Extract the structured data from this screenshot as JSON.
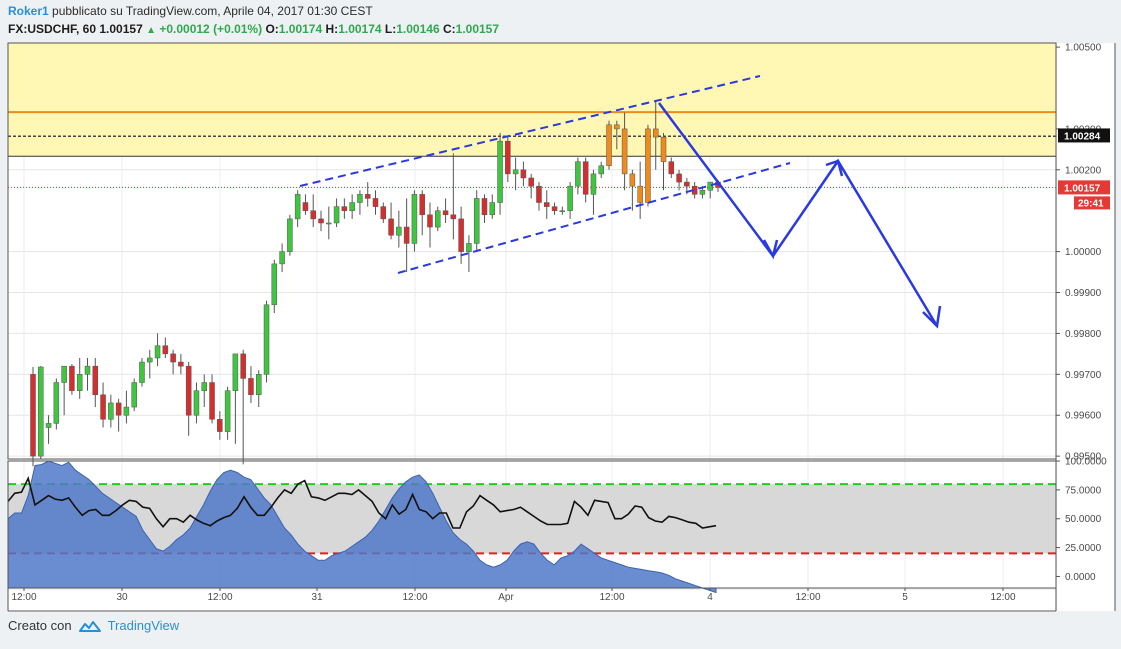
{
  "header": {
    "user": "Roker1",
    "published": "pubblicato su TradingView.com, Aprile 04, 2017 01:30 CEST",
    "symbol": "FX:USDCHF, 60",
    "last": "1.00157",
    "change": "+0.00012 (+0.01%)",
    "o_label": "O:",
    "o_value": "1.00174",
    "h_label": "H:",
    "h_value": "1.00174",
    "l_label": "L:",
    "l_value": "1.00146",
    "c_label": "C:",
    "c_value": "1.00157"
  },
  "footer": {
    "created_with": "Creato con",
    "brand": "TradingView"
  },
  "colors": {
    "up": "#3fc53f",
    "down": "#d32f2f",
    "orange": "#ef8a1c",
    "blue": "#2a39e0",
    "zone": "#fff7b3",
    "rsi_area": "#4f79c8",
    "rsi_band": "#d8d8d8"
  },
  "chart_data": [
    {
      "type": "candlestick",
      "symbol": "FX:USDCHF, 60",
      "y_axis_labels": [
        "1.00500",
        "1.00300",
        "1.00200",
        "1.00000",
        "0.99900",
        "0.99800",
        "0.99700",
        "0.99600",
        "0.99500"
      ],
      "ylim": [
        0.99493,
        1.0051
      ],
      "price_marker": "1.00284",
      "last_price_marker": "1.00157",
      "countdown": "29:41",
      "x_axis_labels": [
        "12:00",
        "30",
        "12:00",
        "31",
        "12:00",
        "Apr",
        "12:00",
        "4",
        "12:00",
        "5",
        "12:00"
      ],
      "candles_ohlc": [
        [
          0.997,
          0.99718,
          0.99475,
          0.995
        ],
        [
          0.995,
          0.9972,
          0.99492,
          0.99718
        ],
        [
          0.9957,
          0.996,
          0.9953,
          0.9958
        ],
        [
          0.9958,
          0.9969,
          0.99565,
          0.9968
        ],
        [
          0.9968,
          0.9972,
          0.996,
          0.9972
        ],
        [
          0.9972,
          0.99725,
          0.9965,
          0.9966
        ],
        [
          0.9966,
          0.9974,
          0.9964,
          0.997
        ],
        [
          0.997,
          0.9974,
          0.9966,
          0.9972
        ],
        [
          0.9972,
          0.9974,
          0.9962,
          0.9965
        ],
        [
          0.9965,
          0.9968,
          0.9957,
          0.9959
        ],
        [
          0.9959,
          0.9965,
          0.9957,
          0.9963
        ],
        [
          0.9963,
          0.9964,
          0.9956,
          0.996
        ],
        [
          0.996,
          0.9966,
          0.9958,
          0.9962
        ],
        [
          0.9962,
          0.9969,
          0.9961,
          0.9968
        ],
        [
          0.9968,
          0.9974,
          0.9967,
          0.9973
        ],
        [
          0.9973,
          0.9976,
          0.9969,
          0.9974
        ],
        [
          0.9974,
          0.998,
          0.9972,
          0.9977
        ],
        [
          0.9977,
          0.9979,
          0.9974,
          0.9975
        ],
        [
          0.9975,
          0.9976,
          0.997,
          0.9973
        ],
        [
          0.9973,
          0.9975,
          0.997,
          0.9972
        ],
        [
          0.9972,
          0.9973,
          0.9955,
          0.996
        ],
        [
          0.996,
          0.9968,
          0.9958,
          0.9966
        ],
        [
          0.9966,
          0.997,
          0.9962,
          0.9968
        ],
        [
          0.9968,
          0.997,
          0.9958,
          0.9959
        ],
        [
          0.9959,
          0.9961,
          0.9954,
          0.9956
        ],
        [
          0.9956,
          0.9967,
          0.9954,
          0.9966
        ],
        [
          0.9966,
          0.9975,
          0.9953,
          0.9975
        ],
        [
          0.9975,
          0.9976,
          0.9948,
          0.9969
        ],
        [
          0.9969,
          0.9972,
          0.9963,
          0.9965
        ],
        [
          0.9965,
          0.9971,
          0.9962,
          0.997
        ],
        [
          0.997,
          0.9988,
          0.9968,
          0.9987
        ],
        [
          0.9987,
          0.9998,
          0.9985,
          0.9997
        ],
        [
          0.9997,
          1.0002,
          0.9995,
          1.0
        ],
        [
          1.0,
          1.0009,
          0.9999,
          1.0008
        ],
        [
          1.0008,
          1.0015,
          1.0006,
          1.0014
        ],
        [
          1.0012,
          1.0014,
          1.0009,
          1.001
        ],
        [
          1.001,
          1.0014,
          1.0006,
          1.0008
        ],
        [
          1.0008,
          1.001,
          1.0005,
          1.0007
        ],
        [
          1.0007,
          1.0011,
          1.0003,
          1.0007
        ],
        [
          1.0007,
          1.0013,
          1.0006,
          1.0011
        ],
        [
          1.0011,
          1.0013,
          1.0008,
          1.001
        ],
        [
          1.001,
          1.0014,
          1.0008,
          1.0012
        ],
        [
          1.0012,
          1.0015,
          1.0009,
          1.0014
        ],
        [
          1.0014,
          1.0017,
          1.0011,
          1.0013
        ],
        [
          1.0013,
          1.0015,
          1.0009,
          1.0011
        ],
        [
          1.0011,
          1.0012,
          1.0007,
          1.0008
        ],
        [
          1.0008,
          1.0012,
          1.0003,
          1.0004
        ],
        [
          1.0004,
          1.001,
          1.0001,
          1.0006
        ],
        [
          1.0006,
          1.0013,
          0.9995,
          1.0002
        ],
        [
          1.0002,
          1.0015,
          1.0,
          1.0014
        ],
        [
          1.0014,
          1.0015,
          1.0004,
          1.0009
        ],
        [
          1.0009,
          1.0012,
          1.0001,
          1.0006
        ],
        [
          1.0006,
          1.0011,
          1.0005,
          1.001
        ],
        [
          1.001,
          1.0013,
          1.0007,
          1.0009
        ],
        [
          1.0009,
          1.0024,
          1.0003,
          1.0008
        ],
        [
          1.0008,
          1.0011,
          0.9997,
          1.0
        ],
        [
          1.0,
          1.0004,
          0.9995,
          1.0002
        ],
        [
          1.0002,
          1.0015,
          1.0,
          1.0013
        ],
        [
          1.0013,
          1.0014,
          1.0007,
          1.0009
        ],
        [
          1.0009,
          1.0014,
          1.0008,
          1.0012
        ],
        [
          1.0012,
          1.0029,
          1.0009,
          1.0027
        ],
        [
          1.0027,
          1.0028,
          1.0017,
          1.0019
        ],
        [
          1.0019,
          1.0023,
          1.0015,
          1.002
        ],
        [
          1.002,
          1.0022,
          1.0016,
          1.0018
        ],
        [
          1.0018,
          1.0019,
          1.0013,
          1.0016
        ],
        [
          1.0016,
          1.0017,
          1.001,
          1.0012
        ],
        [
          1.0012,
          1.0015,
          1.0008,
          1.0011
        ],
        [
          1.0011,
          1.0012,
          1.0009,
          1.001
        ],
        [
          1.001,
          1.0011,
          1.0009,
          1.001
        ],
        [
          1.001,
          1.0017,
          1.0008,
          1.0016
        ],
        [
          1.0016,
          1.0023,
          1.0014,
          1.0022
        ],
        [
          1.0022,
          1.0023,
          1.0012,
          1.0014
        ],
        [
          1.0014,
          1.002,
          1.0009,
          1.0019
        ],
        [
          1.0019,
          1.0022,
          1.0018,
          1.0021
        ],
        [
          1.0021,
          1.0032,
          1.002,
          1.0031
        ],
        [
          1.0031,
          1.0032,
          1.0025,
          1.003
        ],
        [
          1.003,
          1.0034,
          1.0015,
          1.0019
        ],
        [
          1.0019,
          1.002,
          1.001,
          1.0016
        ],
        [
          1.0016,
          1.0022,
          1.0008,
          1.0012
        ],
        [
          1.0012,
          1.0031,
          1.0011,
          1.003
        ],
        [
          1.003,
          1.0037,
          1.002,
          1.0028
        ],
        [
          1.0028,
          1.0029,
          1.0015,
          1.0022
        ],
        [
          1.0022,
          1.0023,
          1.0018,
          1.0019
        ],
        [
          1.0019,
          1.002,
          1.0015,
          1.0017
        ],
        [
          1.0017,
          1.0018,
          1.0014,
          1.0016
        ],
        [
          1.0016,
          1.0017,
          1.0013,
          1.0014
        ],
        [
          1.0014,
          1.0016,
          1.0013,
          1.0015
        ],
        [
          1.0015,
          1.0017,
          1.0013,
          1.0017
        ],
        [
          1.0017,
          1.00175,
          1.00146,
          1.00157
        ]
      ],
      "horizontal_levels": [
        1.00341,
        1.00282,
        1.00233,
        1.00157
      ],
      "zone": [
        1.00233,
        1.0051
      ]
    },
    {
      "type": "line",
      "name": "RSI",
      "y_axis_labels": [
        "100.0000",
        "75.0000",
        "50.0000",
        "25.0000",
        "0.0000"
      ],
      "ylim": [
        -10,
        100
      ],
      "upper_band": 80,
      "lower_band": 20,
      "line_values": [
        65,
        72,
        73,
        85,
        62,
        66,
        70,
        67,
        66,
        68,
        60,
        53,
        57,
        58,
        53,
        53,
        57,
        62,
        66,
        65,
        60,
        59,
        50,
        43,
        50,
        50,
        47,
        53,
        49,
        46,
        44,
        48,
        51,
        53,
        59,
        69,
        60,
        53,
        53,
        60,
        68,
        75,
        72,
        80,
        83,
        69,
        68,
        66,
        69,
        72,
        72,
        71,
        75,
        70,
        65,
        55,
        50,
        62,
        54,
        58,
        71,
        58,
        56,
        50,
        55,
        55,
        42,
        42,
        56,
        61,
        70,
        66,
        62,
        56,
        57,
        58,
        60,
        56,
        52,
        48,
        45,
        45,
        45,
        46,
        65,
        60,
        53,
        66,
        65,
        64,
        50,
        50,
        54,
        61,
        60,
        51,
        48,
        47,
        52,
        51,
        49,
        47,
        46,
        42,
        43,
        44
      ],
      "area_values": [
        50,
        55,
        55,
        70,
        96,
        97,
        100,
        98,
        96,
        99,
        92,
        88,
        84,
        78,
        72,
        68,
        64,
        60,
        56,
        52,
        40,
        32,
        24,
        22,
        26,
        32,
        36,
        42,
        52,
        62,
        74,
        84,
        90,
        92,
        90,
        86,
        84,
        76,
        68,
        62,
        52,
        42,
        36,
        28,
        22,
        18,
        14,
        14,
        18,
        20,
        22,
        26,
        30,
        34,
        40,
        48,
        58,
        68,
        76,
        82,
        86,
        88,
        82,
        72,
        60,
        48,
        38,
        32,
        28,
        22,
        14,
        10,
        8,
        10,
        14,
        22,
        28,
        30,
        28,
        20,
        14,
        10,
        16,
        18,
        22,
        28,
        24,
        20,
        16,
        14,
        12,
        10,
        8,
        7,
        6,
        5,
        4,
        3,
        1,
        -2,
        -4,
        -6,
        -8,
        -10,
        -12,
        -14
      ],
      "x_axis_labels": [
        "12:00",
        "30",
        "12:00",
        "31",
        "12:00",
        "Apr",
        "12:00",
        "4",
        "12:00",
        "5",
        "12:00"
      ]
    }
  ]
}
